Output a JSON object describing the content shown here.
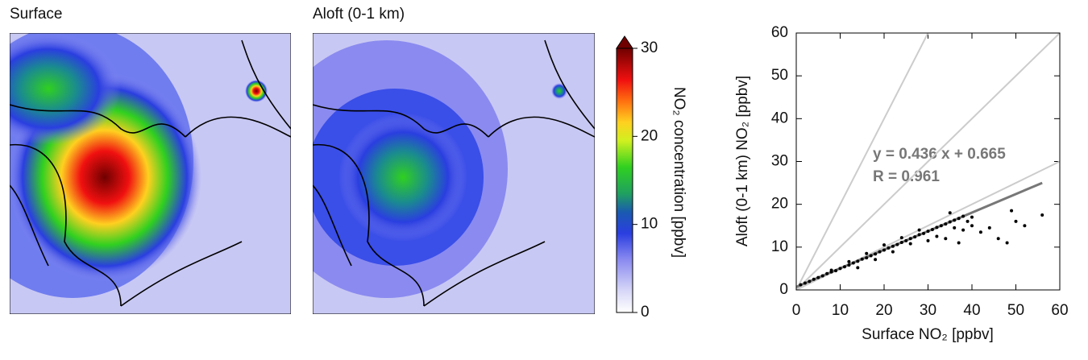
{
  "panels": {
    "surface": "Surface",
    "aloft": "Aloft (0-1 km)"
  },
  "colorbar": {
    "label": "NO₂ concentration [ppbv]",
    "lim": [
      0,
      30
    ],
    "ticks": [
      0,
      10,
      20,
      30
    ]
  },
  "chart_data": {
    "type": "scatter",
    "xlabel": "Surface NO₂ [ppbv]",
    "ylabel": "Aloft (0-1 km) NO₂ [ppbv]",
    "annotations": [
      "y = 0.436 x + 0.665",
      "R = 0.961"
    ],
    "xlim": [
      0,
      60
    ],
    "ylim": [
      0,
      60
    ],
    "xticks": [
      0,
      10,
      20,
      30,
      40,
      50,
      60
    ],
    "yticks": [
      0,
      10,
      20,
      30,
      40,
      50,
      60
    ],
    "color": "#000000",
    "reference_lines": [
      {
        "slope": 2,
        "color": "#cccccc"
      },
      {
        "slope": 1,
        "color": "#cccccc"
      },
      {
        "slope": 0.5,
        "color": "#cccccc"
      }
    ],
    "fit_line": {
      "x": [
        0,
        56
      ],
      "y": [
        0.7,
        25
      ],
      "color": "#777777"
    },
    "x": [
      1,
      2,
      3,
      4,
      5,
      6,
      7,
      8,
      9,
      10,
      11,
      12,
      13,
      14,
      15,
      16,
      17,
      18,
      19,
      20,
      21,
      22,
      23,
      24,
      25,
      26,
      27,
      28,
      29,
      30,
      31,
      32,
      33,
      34,
      35,
      36,
      37,
      38,
      39,
      40,
      8,
      12,
      16,
      20,
      24,
      28,
      32,
      36,
      14,
      18,
      22,
      26,
      30,
      34,
      38,
      42,
      44,
      46,
      48,
      49,
      50,
      52,
      56,
      40,
      35,
      37
    ],
    "y": [
      1.2,
      1.6,
      2.0,
      2.5,
      2.9,
      3.3,
      3.8,
      4.2,
      4.5,
      5.0,
      5.4,
      5.8,
      6.3,
      6.7,
      7.2,
      7.5,
      8.0,
      8.4,
      8.9,
      9.3,
      9.8,
      10.2,
      10.6,
      11.1,
      11.5,
      12.0,
      12.4,
      12.9,
      13.2,
      13.7,
      14.1,
      14.6,
      15.0,
      15.4,
      15.9,
      16.3,
      16.7,
      17.2,
      16.0,
      15.0,
      4.6,
      6.6,
      8.5,
      10.5,
      12.2,
      14.0,
      12.5,
      14.5,
      5.2,
      7.1,
      8.9,
      10.8,
      11.5,
      12.0,
      14.0,
      13.5,
      14.5,
      12.0,
      11.0,
      18.5,
      16.0,
      15.0,
      17.5,
      17.0,
      18.0,
      11.0
    ]
  }
}
